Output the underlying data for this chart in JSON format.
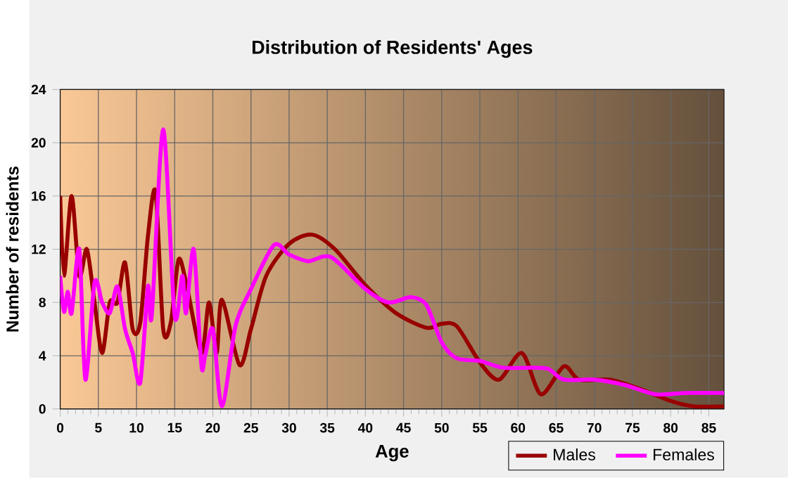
{
  "chart_data": {
    "type": "line",
    "title": "Distribution of Residents' Ages",
    "xlabel": "Age",
    "ylabel": "Number of residents",
    "xlim": [
      0,
      87
    ],
    "xticks": [
      0,
      5,
      10,
      15,
      20,
      25,
      30,
      35,
      40,
      45,
      50,
      55,
      60,
      65,
      70,
      75,
      80,
      85
    ],
    "ylim": [
      0,
      24
    ],
    "yticks": [
      0,
      4,
      8,
      12,
      16,
      20,
      24
    ],
    "grid": true,
    "legend": "bottom right",
    "marker": "none",
    "line_style": "solid",
    "series": [
      {
        "name": "Males",
        "color": "#990000",
        "x": [
          0,
          0.5,
          1.5,
          2.5,
          3.5,
          4.5,
          5.5,
          6.5,
          7.5,
          8.5,
          9.5,
          10.5,
          11.5,
          12.5,
          13.5,
          14.5,
          15.5,
          16.5,
          18.5,
          19.5,
          20.5,
          21.2,
          23.5,
          25,
          27,
          30,
          33,
          36,
          40,
          44,
          48,
          50,
          52,
          55,
          57.5,
          60.5,
          63,
          66,
          68,
          72,
          76,
          80,
          83,
          87
        ],
        "values": [
          16,
          10,
          16,
          10,
          12,
          8,
          4.2,
          8,
          8,
          11,
          6,
          6.5,
          13,
          16.3,
          6,
          6.5,
          11.2,
          9.5,
          4.2,
          8,
          4.2,
          8.2,
          3.3,
          6,
          10,
          12.4,
          13.1,
          12,
          9.3,
          7.2,
          6.1,
          6.4,
          6.2,
          3.5,
          2.2,
          4.2,
          1.1,
          3.2,
          2.2,
          2.2,
          1.5,
          0.6,
          0.2,
          0.2
        ]
      },
      {
        "name": "Females",
        "color": "#ff00ff",
        "x": [
          0,
          0.5,
          1,
          1.5,
          2.5,
          3.3,
          4.5,
          5.5,
          6.5,
          7.5,
          8.5,
          9.5,
          10.5,
          11.5,
          12,
          13.5,
          15,
          16,
          16.5,
          17.5,
          18.5,
          19,
          20,
          21.2,
          23,
          25,
          28,
          30,
          32.5,
          35.5,
          40,
          43,
          46,
          48,
          50,
          52,
          55,
          58,
          62,
          64,
          66,
          70,
          74,
          78,
          82,
          87
        ],
        "values": [
          10,
          7.3,
          8.8,
          7.2,
          12,
          2.2,
          9.5,
          8,
          7.2,
          9.2,
          6,
          4.2,
          2,
          9.2,
          7,
          21,
          7,
          10,
          7.2,
          12,
          3.3,
          4,
          6,
          0.2,
          6.3,
          9,
          12.3,
          11.6,
          11.1,
          11.4,
          9,
          8,
          8.4,
          7.8,
          5,
          3.8,
          3.6,
          3.1,
          3.1,
          3,
          2.2,
          2.2,
          1.8,
          1.1,
          1.2,
          1.2
        ]
      }
    ]
  }
}
